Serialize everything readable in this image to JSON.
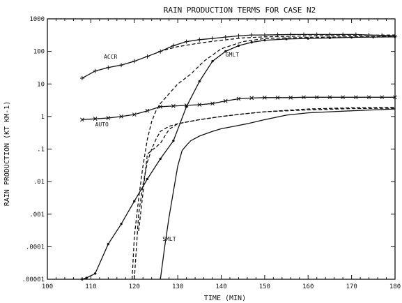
{
  "chart_data": {
    "type": "line",
    "title": "RAIN PRODUCTION TERMS FOR CASE N2",
    "xlabel": "TIME (MIN)",
    "ylabel": "RAIN PRODUCTION (KT KM-1)",
    "xlim": [
      100,
      180
    ],
    "ylim": [
      1e-05,
      1000
    ],
    "yscale": "log",
    "grid": false,
    "x_ticks": [
      100,
      110,
      120,
      130,
      140,
      150,
      160,
      170,
      180
    ],
    "x_tick_labels": [
      "100",
      "110",
      "120",
      "130",
      "140",
      "150",
      "160",
      "170",
      "180"
    ],
    "y_ticks": [
      1e-05,
      0.0001,
      0.001,
      0.01,
      0.1,
      1,
      10,
      100,
      1000
    ],
    "y_tick_labels": [
      ".00001",
      ".0001",
      ".001",
      ".01",
      ".1",
      "1",
      "10",
      "100",
      "1000"
    ],
    "series": [
      {
        "name": "ACCR",
        "style": "solid",
        "marker": "plus",
        "x": [
          108,
          111,
          114,
          117,
          120,
          123,
          126,
          129,
          132,
          135,
          138,
          141,
          144,
          147,
          150,
          153,
          156,
          159,
          162,
          165,
          168,
          171,
          174,
          177,
          180
        ],
        "y": [
          15,
          25,
          32,
          38,
          50,
          70,
          100,
          150,
          200,
          230,
          250,
          275,
          300,
          320,
          320,
          325,
          330,
          330,
          330,
          330,
          330,
          330,
          320,
          310,
          300
        ]
      },
      {
        "name": "",
        "style": "dashed",
        "marker": "none",
        "x": [
          127,
          130,
          135,
          140,
          145,
          150,
          160,
          170,
          180
        ],
        "y": [
          110,
          140,
          180,
          220,
          260,
          280,
          300,
          310,
          320
        ]
      },
      {
        "name": "AUTO",
        "style": "solid",
        "marker": "x",
        "x": [
          108,
          111,
          114,
          117,
          120,
          123,
          126,
          129,
          132,
          135,
          138,
          141,
          144,
          147,
          150,
          153,
          156,
          159,
          162,
          165,
          168,
          171,
          174,
          177,
          180
        ],
        "y": [
          0.8,
          0.85,
          0.9,
          1.0,
          1.15,
          1.5,
          2.0,
          2.1,
          2.2,
          2.3,
          2.5,
          3.0,
          3.5,
          3.7,
          3.8,
          3.8,
          3.8,
          3.9,
          3.9,
          3.9,
          3.9,
          3.9,
          3.9,
          3.9,
          3.9
        ]
      },
      {
        "name": "",
        "style": "dashed",
        "marker": "none",
        "x": [
          121,
          123,
          126,
          128,
          130,
          135,
          140,
          145,
          150,
          160,
          170,
          180
        ],
        "y": [
          0.0003,
          0.07,
          0.15,
          0.4,
          0.6,
          0.8,
          1.0,
          1.2,
          1.4,
          1.7,
          1.85,
          1.9
        ]
      },
      {
        "name": "GMLT",
        "style": "solid",
        "marker": "dot",
        "x": [
          108,
          109,
          111,
          114,
          117,
          120,
          123,
          126,
          129,
          132,
          135,
          138,
          141,
          144,
          147,
          150,
          155,
          160,
          165,
          170,
          175,
          180
        ],
        "y": [
          1e-05,
          1.1e-05,
          1.5e-05,
          0.00012,
          0.0005,
          0.0025,
          0.012,
          0.05,
          0.18,
          2.0,
          12,
          50,
          100,
          150,
          190,
          220,
          240,
          250,
          260,
          270,
          275,
          280
        ]
      },
      {
        "name": "",
        "style": "dashed",
        "marker": "none",
        "x": [
          119.5,
          120,
          121,
          122,
          123,
          124,
          125,
          126,
          128,
          130,
          133,
          136,
          140,
          145,
          150,
          160,
          170,
          180
        ],
        "y": [
          1e-05,
          0.0002,
          0.003,
          0.03,
          0.2,
          0.7,
          1.5,
          2.5,
          5,
          10,
          20,
          50,
          120,
          200,
          250,
          270,
          280,
          290
        ]
      },
      {
        "name": "SMLT",
        "style": "solid",
        "marker": "none",
        "x": [
          126,
          127,
          128,
          129,
          130,
          131,
          132,
          133,
          135,
          138,
          140,
          143,
          146,
          150,
          155,
          160,
          165,
          170,
          175,
          180
        ],
        "y": [
          1e-05,
          0.0001,
          0.0008,
          0.005,
          0.03,
          0.09,
          0.13,
          0.18,
          0.25,
          0.35,
          0.42,
          0.5,
          0.6,
          0.8,
          1.1,
          1.3,
          1.4,
          1.5,
          1.6,
          1.7
        ]
      },
      {
        "name": "",
        "style": "dashed",
        "marker": "none",
        "x": [
          120,
          120.5,
          121,
          122,
          123,
          124,
          125,
          126,
          128,
          130,
          135,
          140,
          145,
          150,
          160,
          170,
          180
        ],
        "y": [
          1e-05,
          0.0001,
          0.001,
          0.008,
          0.04,
          0.1,
          0.2,
          0.35,
          0.5,
          0.6,
          0.8,
          1.0,
          1.2,
          1.4,
          1.6,
          1.75,
          1.8
        ]
      }
    ],
    "annotations": [
      {
        "text": "ACCR",
        "x": 113,
        "y": 60
      },
      {
        "text": "GMLT",
        "x": 141,
        "y": 70
      },
      {
        "text": "AUTO",
        "x": 111,
        "y": 0.5
      },
      {
        "text": "SMLT",
        "x": 126.5,
        "y": 0.00015
      }
    ]
  }
}
